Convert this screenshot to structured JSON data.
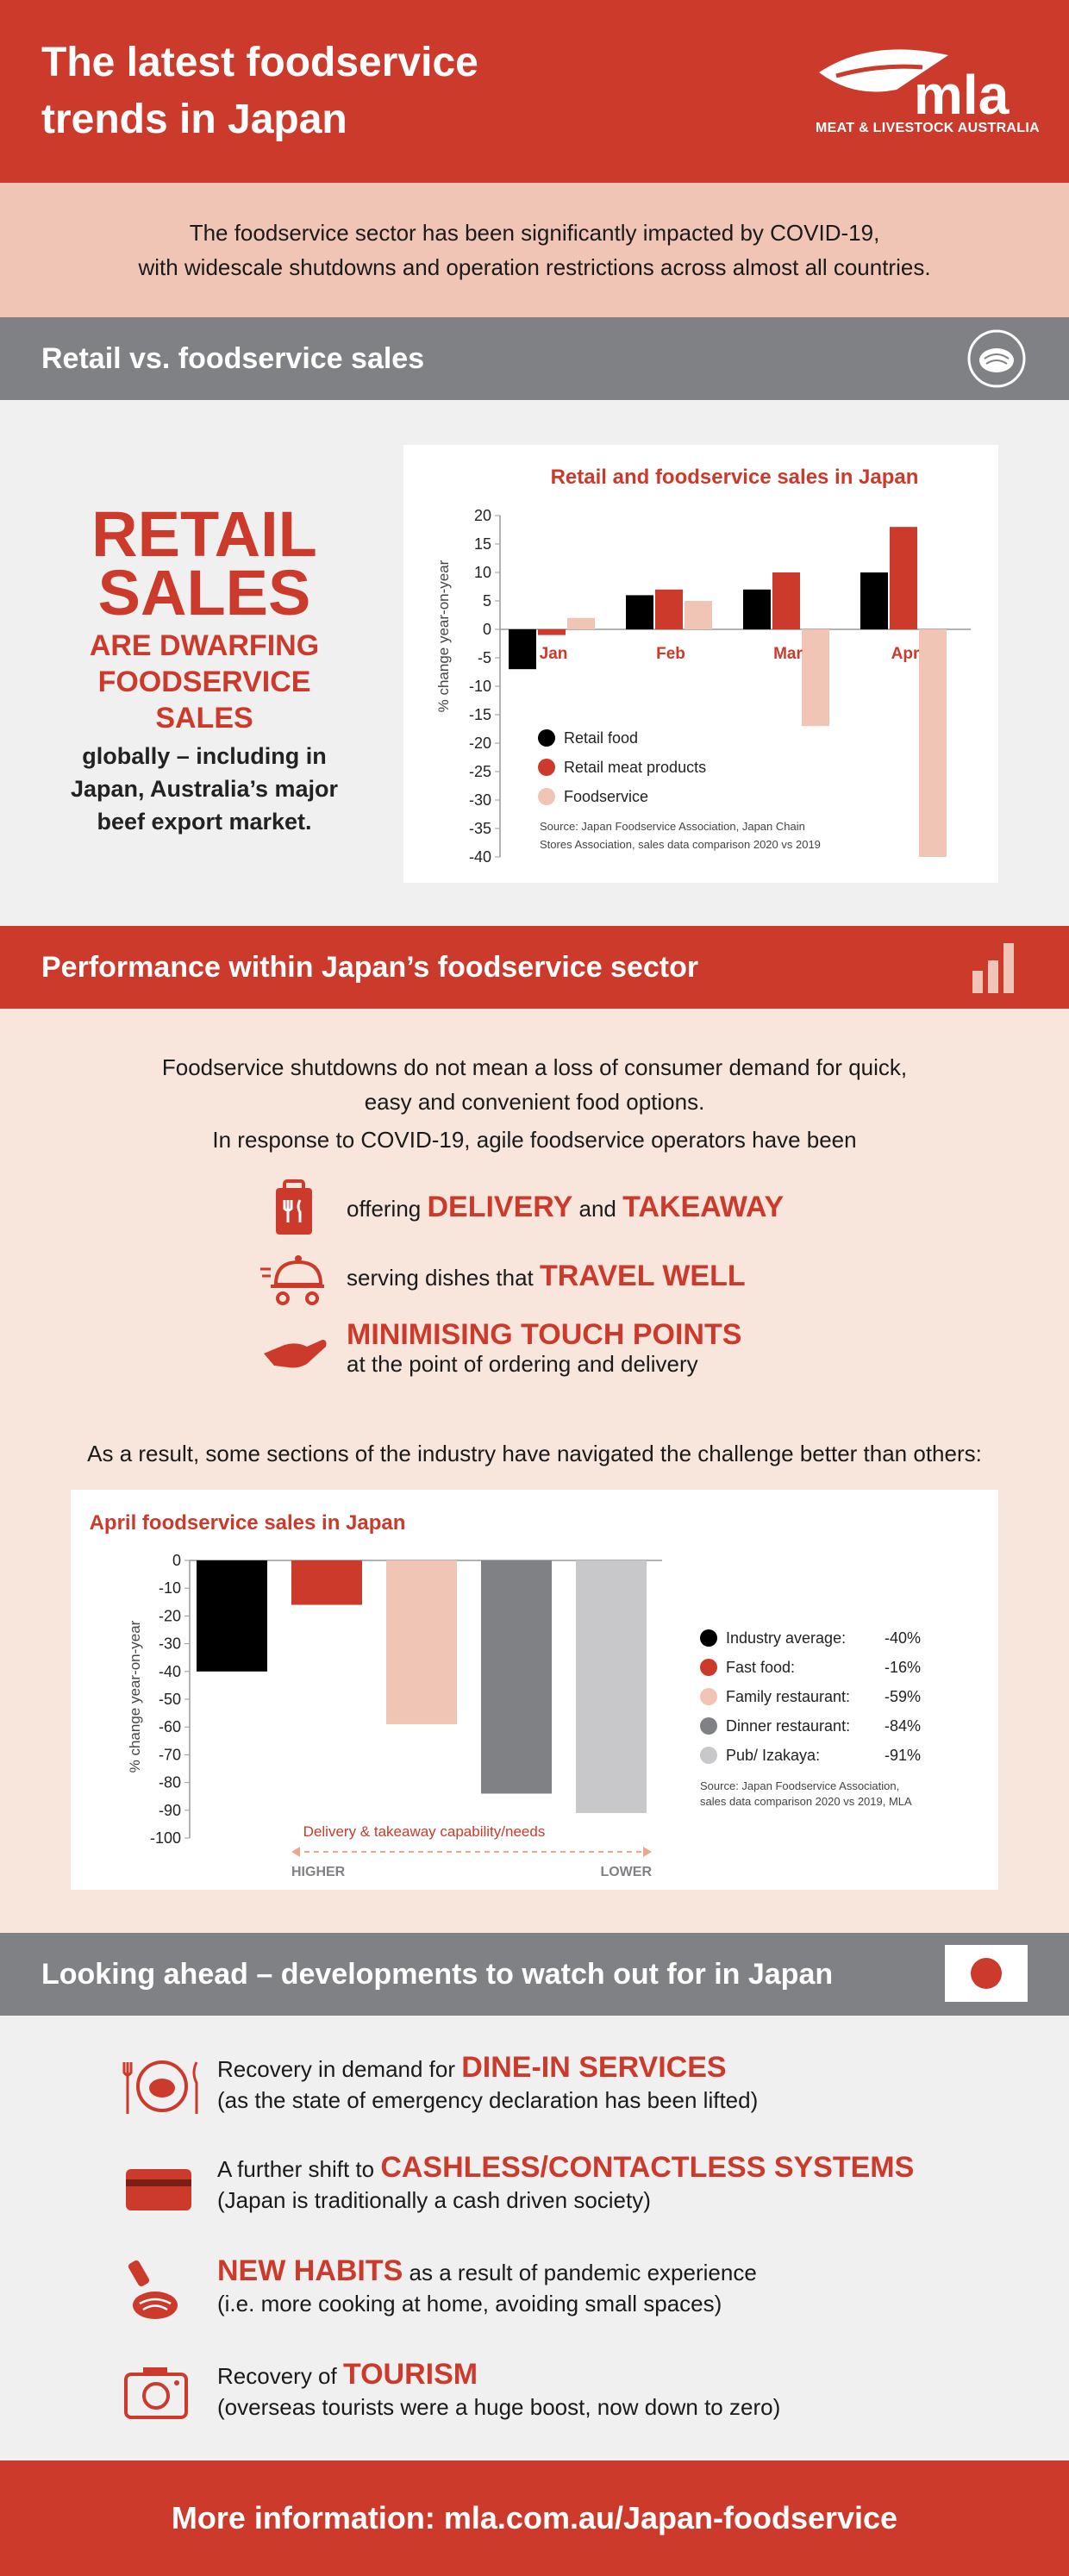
{
  "header": {
    "title": "The latest foodservice trends in Japan",
    "logo_text": "mla",
    "logo_sub": "MEAT & LIVESTOCK AUSTRALIA"
  },
  "intro": {
    "line1": "The foodservice sector has been significantly impacted by COVID-19,",
    "line2": "with widescale shutdowns and operation restrictions across almost all countries."
  },
  "sections": {
    "retail_title": "Retail vs. foodservice sales",
    "performance_title": "Performance within Japan’s foodservice sector",
    "ahead_title": "Looking ahead – developments to watch out for in Japan"
  },
  "retail": {
    "big": [
      "RETAIL",
      "SALES"
    ],
    "mid": [
      "ARE DWARFING",
      "FOODSERVICE",
      "SALES"
    ],
    "small": "globally – including in Japan, Australia’s major beef export market."
  },
  "performance": {
    "p1_line1": "Foodservice shutdowns do not mean a loss of consumer demand for quick,",
    "p1_line2": "easy and convenient food options.",
    "p2": "In response to COVID-19, agile foodservice operators have been",
    "f1_a": "offering ",
    "f1_b": "DELIVERY",
    "f1_c": " and ",
    "f1_d": "TAKEAWAY",
    "f2_a": "serving dishes that ",
    "f2_b": "TRAVEL WELL",
    "f3_b": "MINIMISING TOUCH POINTS",
    "f3_c": "at the point of ordering and delivery",
    "result": "As a result, some sections of the industry have navigated the challenge better than others:"
  },
  "chart_data": [
    {
      "type": "bar",
      "title": "Retail and foodservice sales in Japan",
      "ylabel": "% change year-on-year",
      "xlabel": "",
      "categories": [
        "Jan",
        "Feb",
        "Mar",
        "Apr"
      ],
      "ylim": [
        -40,
        20
      ],
      "yticks": [
        20,
        15,
        10,
        5,
        0,
        -5,
        -10,
        -15,
        -20,
        -25,
        -30,
        -35,
        -40
      ],
      "series": [
        {
          "name": "Retail food",
          "color": "#000000",
          "values": [
            -7,
            6,
            7,
            10
          ]
        },
        {
          "name": "Retail meat products",
          "color": "#cc3a2b",
          "values": [
            -1,
            7,
            10,
            18
          ]
        },
        {
          "name": "Foodservice",
          "color": "#f0c5b5",
          "values": [
            2,
            5,
            -17,
            -40
          ]
        }
      ],
      "source": [
        "Source: Japan Foodservice Association, Japan Chain",
        "Stores Association, sales data comparison 2020 vs 2019"
      ],
      "legend_position": "bottom-left",
      "grid": false
    },
    {
      "type": "bar",
      "title": "April foodservice sales in Japan",
      "ylabel": "% change year-on-year",
      "xlabel": "Delivery & takeaway capability/needs",
      "axis_ends": [
        "HIGHER",
        "LOWER"
      ],
      "ylim": [
        -100,
        0
      ],
      "yticks": [
        0,
        -10,
        -20,
        -30,
        -40,
        -50,
        -60,
        -70,
        -80,
        -90,
        -100
      ],
      "series": [
        {
          "name": "Industry average:",
          "label": "-40%",
          "color": "#000000",
          "value": -40
        },
        {
          "name": "Fast food:",
          "label": "-16%",
          "color": "#cc3a2b",
          "value": -16
        },
        {
          "name": "Family restaurant:",
          "label": "-59%",
          "color": "#f0c5b5",
          "value": -59
        },
        {
          "name": "Dinner restaurant:",
          "label": "-84%",
          "color": "#808184",
          "value": -84
        },
        {
          "name": "Pub/ Izakaya:",
          "label": "-91%",
          "color": "#c8c8ca",
          "value": -91
        }
      ],
      "source": [
        "Source: Japan Foodservice Association,",
        "sales data comparison 2020 vs 2019, MLA"
      ],
      "legend_position": "right",
      "grid": false
    }
  ],
  "ahead": {
    "a1_a": "Recovery in demand for ",
    "a1_b": "DINE-IN SERVICES",
    "a1_c": "(as the state of emergency declaration has been lifted)",
    "a2_a": "A further shift to ",
    "a2_b": "CASHLESS/CONTACTLESS SYSTEMS",
    "a2_c": "(Japan is traditionally a cash driven society)",
    "a3_b": "NEW HABITS",
    "a3_a": " as a result of pandemic experience",
    "a3_c": "(i.e. more cooking at home, avoiding small spaces)",
    "a4_a": "Recovery of ",
    "a4_b": "TOURISM",
    "a4_c": "(overseas tourists were a huge boost, now down to zero)"
  },
  "footer": {
    "text": "More information: mla.com.au/Japan-foodservice"
  },
  "colors": {
    "accent": "#cc3a2b",
    "pink": "#f0c5b5",
    "gray": "#808184",
    "light": "#f0f0f0"
  },
  "icons": [
    "meat-icon",
    "bar-chart-icon",
    "japan-flag-icon",
    "takeaway-bag-icon",
    "delivery-cloche-icon",
    "hand-icon",
    "dining-plate-icon",
    "card-icon",
    "sauce-meat-icon",
    "camera-icon"
  ]
}
